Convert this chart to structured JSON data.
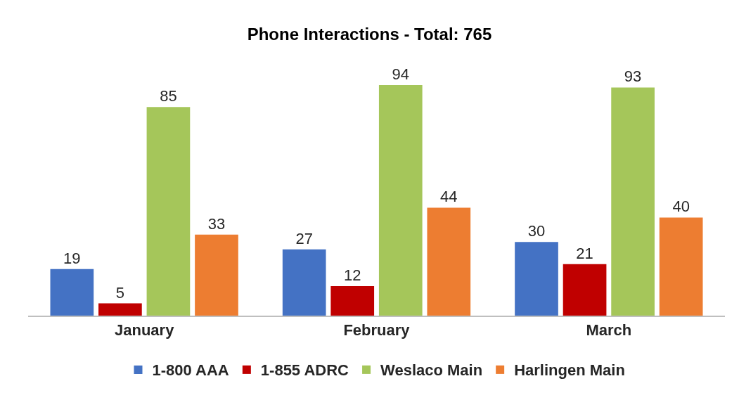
{
  "chart_data": {
    "type": "bar",
    "title": "Phone Interactions - Total: 765",
    "categories": [
      "January",
      "February",
      "March"
    ],
    "series": [
      {
        "name": "1-800 AAA",
        "color": "#4472c4",
        "values": [
          19,
          27,
          30
        ]
      },
      {
        "name": "1-855 ADRC",
        "color": "#c00000",
        "values": [
          5,
          12,
          21
        ]
      },
      {
        "name": "Weslaco Main",
        "color": "#a5c65a",
        "values": [
          85,
          94,
          93
        ]
      },
      {
        "name": "Harlingen Main",
        "color": "#ed7d31",
        "values": [
          33,
          44,
          40
        ]
      }
    ],
    "data_labels": true,
    "legend": "bottom"
  }
}
